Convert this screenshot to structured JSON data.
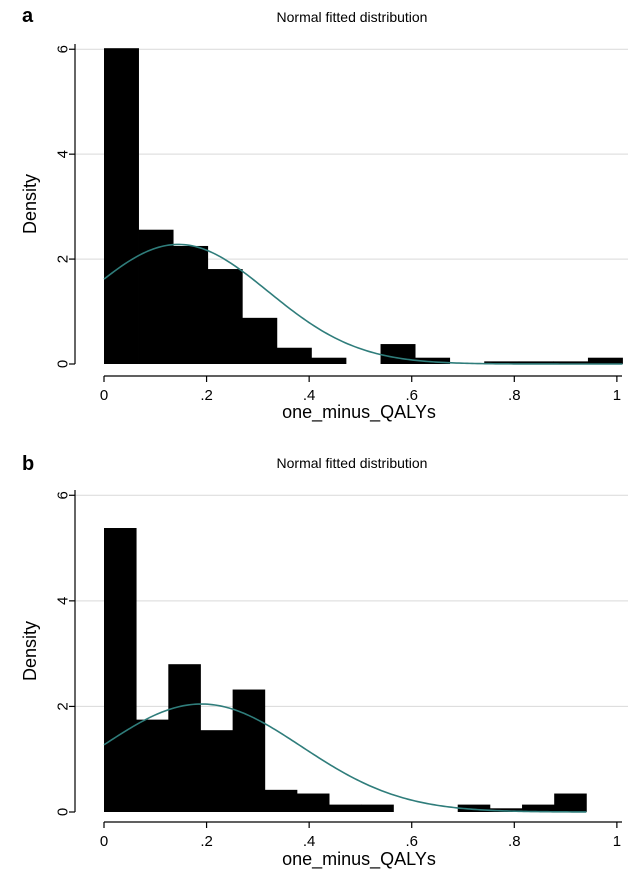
{
  "chart_data": [
    {
      "type": "bar",
      "panel_label": "a",
      "title": "Normal fitted distribution",
      "xlabel": "one_minus_QALYs",
      "ylabel": "Density",
      "xlim": [
        0,
        1.01
      ],
      "ylim": [
        0,
        6.1
      ],
      "x_ticks": [
        0,
        0.2,
        0.4,
        0.6,
        0.8,
        1
      ],
      "x_tick_labels": [
        "0",
        ".2",
        ".4",
        ".6",
        ".8",
        "1"
      ],
      "y_ticks": [
        0,
        2,
        4,
        6
      ],
      "y_tick_labels": [
        "0",
        "2",
        "4",
        "6"
      ],
      "grid": true,
      "bin_width": 0.0674,
      "bin_start": 0,
      "values": [
        6.02,
        2.56,
        2.25,
        1.81,
        0.88,
        0.31,
        0.12,
        0.0,
        0.38,
        0.12,
        0.0,
        0.05,
        0.05,
        0.05,
        0.12
      ],
      "fit": {
        "type": "normal",
        "mean": 0.145,
        "sd": 0.175
      }
    },
    {
      "type": "bar",
      "panel_label": "b",
      "title": "Normal fitted distribution",
      "xlabel": "one_minus_QALYs",
      "ylabel": "Density",
      "xlim": [
        0,
        1.01
      ],
      "ylim": [
        0,
        6.1
      ],
      "x_ticks": [
        0,
        0.2,
        0.4,
        0.6,
        0.8,
        1
      ],
      "x_tick_labels": [
        "0",
        ".2",
        ".4",
        ".6",
        ".8",
        "1"
      ],
      "y_ticks": [
        0,
        2,
        4,
        6
      ],
      "y_tick_labels": [
        "0",
        "2",
        "4",
        "6"
      ],
      "grid": true,
      "bin_width": 0.0627,
      "bin_start": 0,
      "values": [
        5.38,
        1.75,
        2.8,
        1.55,
        2.32,
        0.42,
        0.35,
        0.14,
        0.14,
        0.0,
        0.0,
        0.14,
        0.07,
        0.14,
        0.35
      ],
      "fit": {
        "type": "normal",
        "mean": 0.19,
        "sd": 0.195
      }
    }
  ]
}
